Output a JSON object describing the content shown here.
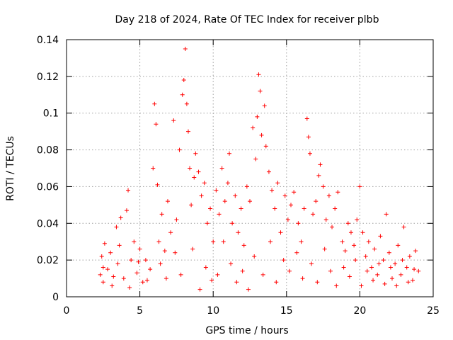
{
  "chart_data": {
    "type": "scatter",
    "title": "Day 218 of 2024, Rate Of TEC Index for receiver plbb",
    "xlabel": "GPS time / hours",
    "ylabel": "ROTI / TECUs",
    "xlim": [
      0,
      25
    ],
    "ylim": [
      0,
      0.14
    ],
    "x_ticks": [
      "0",
      "5",
      "10",
      "15",
      "20",
      "25"
    ],
    "y_ticks": [
      "0",
      "0.02",
      "0.04",
      "0.06",
      "0.08",
      "0.1",
      "0.12",
      "0.14"
    ],
    "grid": true,
    "legend": "none",
    "marker": "+",
    "color": "#ff0000",
    "x_range_observed": [
      2.2,
      24.0
    ],
    "points": [
      [
        2.3,
        0.012
      ],
      [
        2.4,
        0.022
      ],
      [
        2.5,
        0.008
      ],
      [
        2.6,
        0.029
      ],
      [
        2.8,
        0.015
      ],
      [
        3.0,
        0.024
      ],
      [
        3.2,
        0.011
      ],
      [
        3.4,
        0.038
      ],
      [
        3.5,
        0.018
      ],
      [
        3.7,
        0.043
      ],
      [
        3.9,
        0.01
      ],
      [
        4.1,
        0.047
      ],
      [
        4.2,
        0.058
      ],
      [
        4.4,
        0.02
      ],
      [
        4.6,
        0.03
      ],
      [
        4.8,
        0.013
      ],
      [
        5.0,
        0.026
      ],
      [
        5.2,
        0.008
      ],
      [
        5.4,
        0.02
      ],
      [
        5.7,
        0.015
      ],
      [
        5.9,
        0.07
      ],
      [
        6.0,
        0.105
      ],
      [
        6.1,
        0.094
      ],
      [
        6.2,
        0.061
      ],
      [
        6.3,
        0.03
      ],
      [
        6.5,
        0.045
      ],
      [
        6.7,
        0.025
      ],
      [
        6.9,
        0.052
      ],
      [
        7.1,
        0.035
      ],
      [
        7.3,
        0.096
      ],
      [
        7.5,
        0.042
      ],
      [
        7.7,
        0.08
      ],
      [
        7.9,
        0.11
      ],
      [
        8.0,
        0.118
      ],
      [
        8.1,
        0.135
      ],
      [
        8.2,
        0.105
      ],
      [
        8.3,
        0.09
      ],
      [
        8.4,
        0.07
      ],
      [
        8.5,
        0.05
      ],
      [
        8.7,
        0.065
      ],
      [
        8.8,
        0.078
      ],
      [
        9.0,
        0.068
      ],
      [
        9.2,
        0.055
      ],
      [
        9.4,
        0.062
      ],
      [
        9.6,
        0.04
      ],
      [
        9.8,
        0.048
      ],
      [
        10.0,
        0.03
      ],
      [
        10.2,
        0.058
      ],
      [
        10.4,
        0.045
      ],
      [
        10.6,
        0.07
      ],
      [
        10.8,
        0.052
      ],
      [
        11.0,
        0.062
      ],
      [
        11.1,
        0.078
      ],
      [
        11.3,
        0.04
      ],
      [
        11.5,
        0.055
      ],
      [
        11.7,
        0.035
      ],
      [
        11.9,
        0.048
      ],
      [
        12.1,
        0.028
      ],
      [
        12.3,
        0.06
      ],
      [
        12.5,
        0.052
      ],
      [
        12.7,
        0.092
      ],
      [
        12.9,
        0.075
      ],
      [
        13.0,
        0.098
      ],
      [
        13.1,
        0.121
      ],
      [
        13.2,
        0.112
      ],
      [
        13.3,
        0.088
      ],
      [
        13.5,
        0.104
      ],
      [
        13.6,
        0.082
      ],
      [
        13.8,
        0.068
      ],
      [
        14.0,
        0.058
      ],
      [
        14.2,
        0.048
      ],
      [
        14.4,
        0.062
      ],
      [
        14.6,
        0.035
      ],
      [
        14.9,
        0.055
      ],
      [
        15.1,
        0.042
      ],
      [
        15.3,
        0.05
      ],
      [
        15.5,
        0.057
      ],
      [
        15.8,
        0.04
      ],
      [
        16.0,
        0.03
      ],
      [
        16.2,
        0.048
      ],
      [
        16.4,
        0.097
      ],
      [
        16.5,
        0.087
      ],
      [
        16.6,
        0.078
      ],
      [
        16.8,
        0.045
      ],
      [
        17.0,
        0.052
      ],
      [
        17.2,
        0.066
      ],
      [
        17.3,
        0.072
      ],
      [
        17.5,
        0.06
      ],
      [
        17.7,
        0.042
      ],
      [
        17.9,
        0.055
      ],
      [
        18.1,
        0.038
      ],
      [
        18.3,
        0.048
      ],
      [
        18.5,
        0.057
      ],
      [
        18.8,
        0.03
      ],
      [
        19.0,
        0.025
      ],
      [
        19.2,
        0.04
      ],
      [
        19.4,
        0.035
      ],
      [
        19.6,
        0.028
      ],
      [
        19.8,
        0.042
      ],
      [
        20.0,
        0.06
      ],
      [
        20.2,
        0.035
      ],
      [
        20.4,
        0.022
      ],
      [
        20.6,
        0.03
      ],
      [
        20.8,
        0.016
      ],
      [
        21.0,
        0.026
      ],
      [
        21.2,
        0.012
      ],
      [
        21.4,
        0.033
      ],
      [
        21.6,
        0.02
      ],
      [
        21.8,
        0.045
      ],
      [
        22.0,
        0.024
      ],
      [
        22.2,
        0.01
      ],
      [
        22.4,
        0.018
      ],
      [
        22.6,
        0.028
      ],
      [
        22.8,
        0.012
      ],
      [
        23.0,
        0.038
      ],
      [
        23.2,
        0.016
      ],
      [
        23.4,
        0.022
      ],
      [
        23.6,
        0.009
      ],
      [
        23.8,
        0.025
      ],
      [
        24.0,
        0.014
      ],
      [
        2.5,
        0.016
      ],
      [
        3.1,
        0.006
      ],
      [
        3.6,
        0.028
      ],
      [
        4.3,
        0.005
      ],
      [
        4.9,
        0.019
      ],
      [
        5.5,
        0.009
      ],
      [
        6.4,
        0.018
      ],
      [
        6.8,
        0.01
      ],
      [
        7.4,
        0.024
      ],
      [
        7.8,
        0.012
      ],
      [
        8.6,
        0.026
      ],
      [
        9.1,
        0.004
      ],
      [
        9.5,
        0.016
      ],
      [
        9.9,
        0.009
      ],
      [
        10.3,
        0.012
      ],
      [
        10.7,
        0.03
      ],
      [
        11.2,
        0.018
      ],
      [
        11.6,
        0.008
      ],
      [
        12.0,
        0.014
      ],
      [
        12.4,
        0.004
      ],
      [
        12.8,
        0.022
      ],
      [
        13.4,
        0.012
      ],
      [
        13.9,
        0.03
      ],
      [
        14.3,
        0.008
      ],
      [
        14.8,
        0.02
      ],
      [
        15.2,
        0.014
      ],
      [
        15.7,
        0.024
      ],
      [
        16.1,
        0.01
      ],
      [
        16.7,
        0.018
      ],
      [
        17.1,
        0.008
      ],
      [
        17.6,
        0.026
      ],
      [
        18.0,
        0.014
      ],
      [
        18.4,
        0.006
      ],
      [
        18.9,
        0.016
      ],
      [
        19.3,
        0.011
      ],
      [
        19.7,
        0.02
      ],
      [
        20.1,
        0.006
      ],
      [
        20.5,
        0.014
      ],
      [
        20.9,
        0.009
      ],
      [
        21.3,
        0.018
      ],
      [
        21.7,
        0.007
      ],
      [
        22.1,
        0.016
      ],
      [
        22.5,
        0.006
      ],
      [
        22.9,
        0.02
      ],
      [
        23.3,
        0.008
      ],
      [
        23.7,
        0.015
      ]
    ]
  }
}
